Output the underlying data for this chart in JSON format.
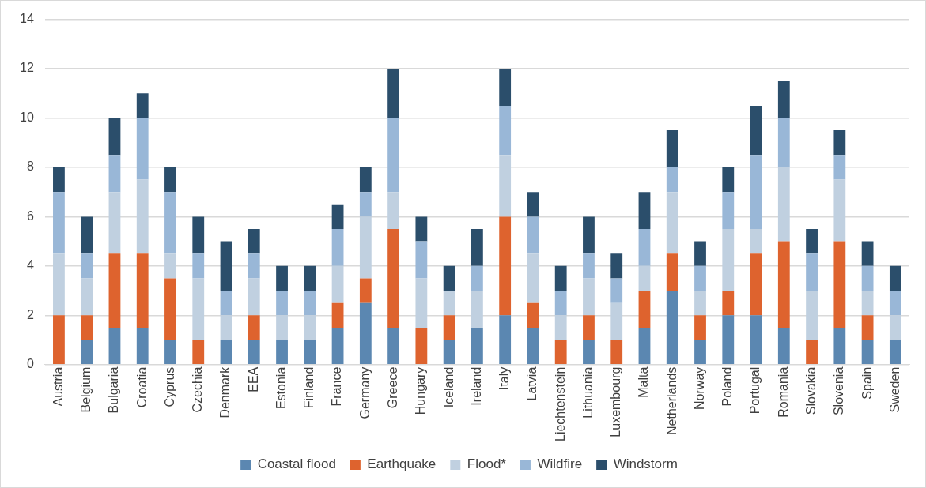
{
  "chart_data": {
    "type": "bar",
    "stacked": true,
    "categories": [
      "Austria",
      "Belgium",
      "Bulgaria",
      "Croatia",
      "Cyprus",
      "Czechia",
      "Denmark",
      "EEA",
      "Estonia",
      "Finland",
      "France",
      "Germany",
      "Greece",
      "Hungary",
      "Iceland",
      "Ireland",
      "Italy",
      "Latvia",
      "Liechtenstein",
      "Lithuania",
      "Luxembourg",
      "Malta",
      "Netherlands",
      "Norway",
      "Poland",
      "Portugal",
      "Romania",
      "Slovakia",
      "Slovenia",
      "Spain",
      "Sweden"
    ],
    "series": [
      {
        "name": "Coastal flood",
        "color": "#5b87b1",
        "values": [
          0,
          1,
          1.5,
          1.5,
          1,
          0,
          1,
          1,
          1,
          1,
          1.5,
          2.5,
          1.5,
          0,
          1,
          1.5,
          2,
          1.5,
          0,
          1,
          0,
          1.5,
          3,
          1,
          2,
          2,
          1.5,
          0,
          1.5,
          1,
          1
        ]
      },
      {
        "name": "Earthquake",
        "color": "#de632e",
        "values": [
          2,
          1,
          3,
          3,
          2.5,
          1,
          0,
          1,
          0,
          0,
          1,
          1,
          4,
          1.5,
          1,
          0,
          4,
          1,
          1,
          1,
          1,
          1.5,
          1.5,
          1,
          1,
          2.5,
          3.5,
          1,
          3.5,
          1,
          0
        ]
      },
      {
        "name": "Flood*",
        "color": "#c0d0e0",
        "values": [
          2.5,
          1.5,
          2.5,
          3,
          1,
          2.5,
          1,
          1.5,
          1,
          1,
          1.5,
          2.5,
          1.5,
          2,
          1,
          1.5,
          2.5,
          2,
          1,
          1.5,
          1.5,
          1,
          2.5,
          1,
          2.5,
          1,
          3,
          2,
          2.5,
          1,
          1
        ]
      },
      {
        "name": "Wildfire",
        "color": "#99b7d7",
        "values": [
          2.5,
          1,
          1.5,
          2.5,
          2.5,
          1,
          1,
          1,
          1,
          1,
          1.5,
          1,
          3,
          1.5,
          0,
          1,
          2,
          1.5,
          1,
          1,
          1,
          1.5,
          1,
          1,
          1.5,
          3,
          2,
          1.5,
          1,
          1,
          1
        ]
      },
      {
        "name": "Windstorm",
        "color": "#2b4e6b",
        "values": [
          1,
          1.5,
          1.5,
          1,
          1,
          1.5,
          2,
          1,
          1,
          1,
          1,
          1,
          2,
          1,
          1,
          1.5,
          1.5,
          1,
          1,
          1.5,
          1,
          1.5,
          1.5,
          1,
          1,
          2,
          1.5,
          1,
          1,
          1,
          1
        ]
      }
    ],
    "ylim": [
      0,
      14
    ],
    "yticks": [
      0,
      2,
      4,
      6,
      8,
      10,
      12,
      14
    ],
    "grid": "y",
    "legend": "bottom"
  }
}
